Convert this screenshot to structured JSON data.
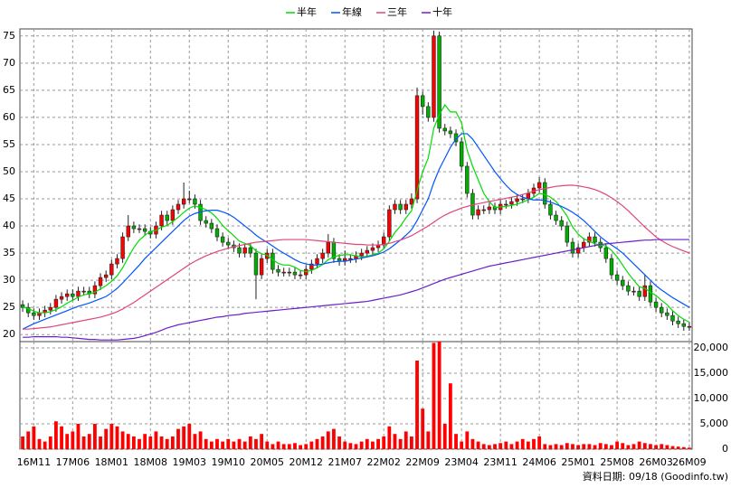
{
  "chart_data": {
    "type": "candlestick",
    "categories": [
      null,
      null,
      "16M11",
      null,
      null,
      null,
      null,
      null,
      null,
      "17M06",
      null,
      null,
      null,
      null,
      null,
      null,
      "18M01",
      null,
      null,
      null,
      null,
      null,
      null,
      "18M08",
      null,
      null,
      null,
      null,
      null,
      null,
      "19M03",
      null,
      null,
      null,
      null,
      null,
      null,
      "19M10",
      null,
      null,
      null,
      null,
      null,
      null,
      "20M05",
      null,
      null,
      null,
      null,
      null,
      null,
      "20M12",
      null,
      null,
      null,
      null,
      null,
      null,
      "21M07",
      null,
      null,
      null,
      null,
      null,
      null,
      "22M02",
      null,
      null,
      null,
      null,
      null,
      null,
      "22M09",
      null,
      null,
      null,
      null,
      null,
      null,
      "23M04",
      null,
      null,
      null,
      null,
      null,
      null,
      "23M11",
      null,
      null,
      null,
      null,
      null,
      null,
      "24M06",
      null,
      null,
      null,
      null,
      null,
      null,
      "25M01",
      null,
      null,
      null,
      null,
      null,
      null,
      "25M08",
      null,
      null,
      null,
      null,
      null,
      null,
      "26M03",
      null,
      null,
      null,
      null,
      null,
      "26M09"
    ],
    "open": [
      25.5,
      25,
      24,
      23.5,
      24,
      24.5,
      25,
      26.5,
      27,
      27.5,
      27,
      28,
      28,
      27.5,
      29,
      30.5,
      31,
      33,
      34,
      38,
      40,
      39.5,
      39.5,
      39,
      38.5,
      40,
      42,
      41,
      43,
      44,
      45,
      45,
      44,
      41,
      40.5,
      39.5,
      38,
      37,
      36.5,
      36,
      35,
      36,
      35,
      31,
      34,
      35,
      32,
      31.5,
      31.5,
      31.5,
      31,
      31,
      32,
      33,
      34,
      35,
      37,
      34,
      33.5,
      34,
      34,
      34.5,
      35,
      35.5,
      36,
      36.5,
      38,
      43,
      44,
      43,
      44,
      45,
      64,
      62,
      60,
      75,
      58,
      57.5,
      57,
      55.5,
      51,
      46,
      42,
      43,
      43,
      43.5,
      43,
      44,
      44,
      44.5,
      45,
      45,
      46,
      47,
      48,
      44,
      42,
      41,
      40,
      37,
      35,
      36,
      37,
      38,
      37,
      36,
      34,
      31,
      30,
      29,
      28,
      28,
      27,
      29,
      26,
      25,
      24,
      23.5,
      22.5,
      22,
      21.5
    ],
    "high": [
      26.3,
      25.8,
      24.8,
      24.8,
      25.3,
      25.8,
      27.3,
      27.8,
      28.3,
      28.3,
      28.8,
      28.8,
      28.8,
      29.8,
      31.3,
      31.8,
      33.8,
      34.8,
      38.8,
      42,
      40.8,
      40.3,
      40.3,
      39.8,
      40.8,
      42.8,
      42.8,
      43.8,
      44.8,
      48,
      46.5,
      45.8,
      44.8,
      41.8,
      41.3,
      40.3,
      38.8,
      37.8,
      37.3,
      36.8,
      36.8,
      36.8,
      35.8,
      34.8,
      35.8,
      35.8,
      32.8,
      32.3,
      32.3,
      32.3,
      31.8,
      32.8,
      33.8,
      34.8,
      35.8,
      38.5,
      37.8,
      34.8,
      35.5,
      34.8,
      35.3,
      35.8,
      36.3,
      36.8,
      37.3,
      38.8,
      43.8,
      44.8,
      44.8,
      44.8,
      46,
      65.5,
      64.8,
      62.8,
      76,
      75.8,
      58.8,
      58.3,
      57.8,
      56.3,
      51.8,
      46.8,
      43.8,
      43.8,
      44.3,
      44.3,
      44.8,
      44.8,
      45.3,
      45.8,
      45.8,
      46.8,
      47.8,
      49,
      48.8,
      44.8,
      42.8,
      41.8,
      40.8,
      37.8,
      36.8,
      37.8,
      38.8,
      38.8,
      37.8,
      36.8,
      34.8,
      31.8,
      30.8,
      29.8,
      28.8,
      28.8,
      31,
      29.8,
      26.8,
      25.8,
      24.8,
      24.3,
      23.3,
      22.8,
      22.3
    ],
    "low": [
      24.2,
      23.2,
      22.7,
      22.7,
      23.2,
      23.7,
      24.2,
      25.7,
      26.2,
      26.2,
      26.2,
      27.2,
      26.7,
      26.7,
      28.2,
      29.7,
      30.2,
      32.2,
      33.2,
      37.2,
      38.7,
      38.7,
      38.2,
      37.7,
      37.7,
      39.2,
      40.2,
      40.2,
      42.2,
      43.2,
      44.2,
      43.2,
      40.2,
      39.7,
      38.7,
      37.2,
      36.2,
      35.7,
      35.2,
      34.2,
      34.2,
      34.2,
      26.5,
      30.2,
      33.2,
      31.2,
      30.7,
      30.7,
      30.7,
      30.2,
      30.2,
      30.2,
      31.2,
      32.2,
      33.2,
      34.2,
      33.2,
      32.7,
      32.7,
      33.2,
      33.2,
      33.7,
      34.2,
      34.7,
      35.2,
      35.7,
      37.2,
      42.2,
      42.2,
      42.2,
      43.2,
      44.2,
      60.5,
      59.2,
      59.2,
      57.2,
      56.7,
      56.2,
      54.7,
      50.2,
      45.2,
      41.2,
      41.2,
      42.2,
      42.2,
      42.2,
      42.2,
      43.2,
      43.2,
      43.7,
      44.2,
      44.2,
      45.2,
      46.2,
      43.2,
      41.2,
      40.2,
      39.2,
      36.2,
      34.2,
      34.2,
      35.2,
      36.2,
      36.2,
      35.2,
      33.2,
      30.2,
      29.2,
      28.2,
      27.2,
      27.2,
      26.2,
      26.2,
      25.2,
      24.2,
      23.2,
      22.7,
      21.7,
      21.2,
      20.7,
      20.7
    ],
    "close": [
      25,
      24,
      23.5,
      24,
      24.5,
      25,
      26.5,
      27,
      27.5,
      27,
      28,
      28,
      27.5,
      29,
      30.5,
      31,
      33,
      34,
      38,
      40,
      39.5,
      39.5,
      39,
      38.5,
      40,
      42,
      41,
      43,
      44,
      45,
      45,
      44,
      41,
      40.5,
      39.5,
      38,
      37,
      36.5,
      36,
      35,
      36,
      35,
      31,
      34,
      35,
      32,
      31.5,
      31.5,
      31.5,
      31,
      31,
      32,
      33,
      34,
      35,
      37,
      34,
      33.5,
      34,
      34,
      34.5,
      35,
      35.5,
      36,
      36.5,
      38,
      43,
      44,
      43,
      44,
      45,
      64,
      62,
      60,
      75,
      58,
      57.5,
      57,
      55.5,
      51,
      46,
      42,
      43,
      43,
      43.5,
      43,
      44,
      44,
      44.5,
      45,
      45,
      46,
      47,
      48,
      44,
      42,
      41,
      40,
      37,
      35,
      36,
      37,
      38,
      37,
      36,
      34,
      31,
      30,
      29,
      28,
      28,
      27,
      29,
      26,
      25,
      24,
      23.5,
      22.5,
      22,
      21.5,
      21.5
    ],
    "up_color": "#ff0000",
    "down_color": "#00b000",
    "series": [
      {
        "name": "半年",
        "color": "#00dd00",
        "values": [
          25,
          24.8,
          24.3,
          24,
          24,
          24.2,
          24.6,
          25.1,
          25.8,
          26.3,
          26.9,
          27.3,
          27.5,
          27.8,
          28.4,
          29,
          29.8,
          30.8,
          32.3,
          34.2,
          36,
          37.4,
          38.3,
          39,
          39.2,
          39.8,
          40.1,
          40.8,
          41.6,
          42.5,
          43.3,
          43.7,
          43.4,
          43,
          42.4,
          41.4,
          40.1,
          39.1,
          38.2,
          37.2,
          36.8,
          36.4,
          35.4,
          34.9,
          34.6,
          33.8,
          33.1,
          32.8,
          32.8,
          32.4,
          31.8,
          31.6,
          31.8,
          32.3,
          32.9,
          33.8,
          34.3,
          34.6,
          34.7,
          34.7,
          34.5,
          34.3,
          34.4,
          34.7,
          35,
          35.8,
          37.2,
          38.8,
          40,
          41.5,
          42.8,
          46.5,
          50,
          52.5,
          58,
          60.5,
          62.3,
          61,
          61,
          59,
          54,
          51,
          48.5,
          46,
          44.5,
          43.4,
          43.5,
          43.6,
          43.8,
          44,
          44.4,
          44.8,
          45.3,
          46,
          45.8,
          45.3,
          44.5,
          43.3,
          41.8,
          39.8,
          38.5,
          37.6,
          37.2,
          36.7,
          36.5,
          36.3,
          35.5,
          34.3,
          32.8,
          31.3,
          30,
          28.8,
          28.5,
          27.8,
          27.2,
          26.3,
          25.5,
          24.4,
          23.5,
          22.8,
          22.3
        ]
      },
      {
        "name": "年線",
        "color": "#0055ff",
        "values": [
          21,
          21.5,
          22,
          22.4,
          22.8,
          23.2,
          23.6,
          24,
          24.4,
          24.8,
          25.2,
          25.5,
          25.8,
          26.2,
          26.6,
          27,
          27.7,
          28.5,
          29.5,
          30.6,
          31.7,
          32.8,
          34,
          35,
          36,
          37,
          38,
          39,
          40,
          41,
          41.8,
          42.3,
          42.6,
          42.8,
          42.9,
          42.9,
          42.6,
          42.2,
          41.6,
          40.8,
          40,
          39.2,
          38.3,
          37.6,
          37,
          36.3,
          35.6,
          35,
          34.4,
          33.8,
          33.3,
          33,
          32.8,
          32.8,
          33,
          33.2,
          33.4,
          33.5,
          33.5,
          33.7,
          33.9,
          34.1,
          34.3,
          34.5,
          34.8,
          35.2,
          35.8,
          36.6,
          37.4,
          38.3,
          39.3,
          41,
          43,
          45,
          48,
          50.5,
          52.5,
          54.5,
          56,
          57,
          57,
          56,
          54.5,
          53,
          51.5,
          50,
          48.7,
          47.5,
          46.5,
          45.8,
          45.3,
          45,
          44.8,
          44.8,
          44.7,
          44.4,
          44,
          43.6,
          43.1,
          42.5,
          41.8,
          41,
          40,
          39,
          38,
          37.2,
          36.5,
          35.8,
          35,
          34,
          33,
          32,
          31,
          30,
          29,
          28.2,
          27.5,
          26.8,
          26.2,
          25.6,
          25
        ]
      },
      {
        "name": "三年",
        "color": "#e0457b",
        "values": [
          21,
          21,
          21.1,
          21.2,
          21.3,
          21.4,
          21.6,
          21.8,
          22,
          22.2,
          22.4,
          22.6,
          22.8,
          23,
          23.2,
          23.5,
          23.8,
          24.2,
          24.7,
          25.3,
          25.9,
          26.6,
          27.3,
          28,
          28.7,
          29.4,
          30.1,
          30.8,
          31.5,
          32.2,
          32.9,
          33.5,
          34,
          34.5,
          34.9,
          35.3,
          35.6,
          35.9,
          36.2,
          36.4,
          36.6,
          36.8,
          37,
          37.1,
          37.2,
          37.3,
          37.4,
          37.5,
          37.5,
          37.5,
          37.5,
          37.5,
          37.4,
          37.3,
          37.2,
          37.1,
          37,
          36.9,
          36.8,
          36.7,
          36.6,
          36.6,
          36.5,
          36.5,
          36.5,
          36.6,
          36.8,
          37.1,
          37.4,
          37.8,
          38.2,
          38.8,
          39.4,
          40,
          40.7,
          41.4,
          42,
          42.5,
          42.9,
          43.3,
          43.6,
          43.9,
          44.1,
          44.3,
          44.5,
          44.7,
          44.9,
          45.1,
          45.3,
          45.5,
          45.8,
          46.1,
          46.4,
          46.7,
          46.9,
          47.1,
          47.3,
          47.4,
          47.5,
          47.5,
          47.4,
          47.2,
          47,
          46.7,
          46.3,
          45.8,
          45.2,
          44.5,
          43.7,
          42.8,
          41.8,
          40.8,
          39.8,
          38.9,
          38,
          37.3,
          36.7,
          36.2,
          35.8,
          35.4,
          35
        ]
      },
      {
        "name": "十年",
        "color": "#6a1fc8",
        "values": [
          19.5,
          19.5,
          19.6,
          19.6,
          19.6,
          19.6,
          19.6,
          19.5,
          19.5,
          19.4,
          19.3,
          19.2,
          19.1,
          19.1,
          19,
          19,
          19,
          19,
          19.1,
          19.2,
          19.3,
          19.5,
          19.8,
          20.1,
          20.4,
          20.8,
          21.2,
          21.5,
          21.8,
          22,
          22.2,
          22.4,
          22.6,
          22.8,
          23,
          23.2,
          23.3,
          23.5,
          23.6,
          23.7,
          23.9,
          24,
          24.1,
          24.2,
          24.3,
          24.4,
          24.5,
          24.6,
          24.7,
          24.8,
          24.9,
          25,
          25.1,
          25.2,
          25.3,
          25.4,
          25.5,
          25.6,
          25.7,
          25.8,
          25.9,
          26,
          26.1,
          26.3,
          26.5,
          26.7,
          26.9,
          27.1,
          27.3,
          27.6,
          27.9,
          28.2,
          28.6,
          29,
          29.4,
          29.8,
          30.2,
          30.5,
          30.8,
          31.1,
          31.4,
          31.7,
          32,
          32.3,
          32.6,
          32.8,
          33,
          33.2,
          33.4,
          33.6,
          33.8,
          34,
          34.2,
          34.4,
          34.6,
          34.8,
          35,
          35.2,
          35.4,
          35.6,
          35.8,
          36,
          36.2,
          36.4,
          36.6,
          36.7,
          36.8,
          36.9,
          37,
          37.1,
          37.2,
          37.3,
          37.4,
          37.4,
          37.5,
          37.5,
          37.5,
          37.5,
          37.5,
          37.5,
          37.5
        ]
      }
    ],
    "ylim": [
      18.7,
      76.3
    ],
    "yticks": [
      20,
      25,
      30,
      35,
      40,
      45,
      50,
      55,
      60,
      65,
      70,
      75
    ],
    "grid": true,
    "volume": {
      "color": "#ff0000",
      "values": [
        2500,
        3500,
        4500,
        2000,
        1500,
        2500,
        5500,
        4500,
        3000,
        3500,
        5000,
        2500,
        3000,
        5000,
        2500,
        4000,
        5000,
        4500,
        3500,
        3000,
        2500,
        2000,
        3000,
        2500,
        3500,
        2500,
        2000,
        2500,
        4000,
        4500,
        5000,
        3000,
        3500,
        2000,
        1500,
        2000,
        1500,
        2000,
        1500,
        2000,
        1500,
        2500,
        2000,
        3000,
        1500,
        1000,
        1500,
        1000,
        1000,
        1200,
        800,
        1000,
        1500,
        2000,
        2500,
        3500,
        4000,
        2500,
        1500,
        1200,
        1000,
        1500,
        2000,
        1500,
        2000,
        2500,
        4500,
        3000,
        2000,
        3500,
        2500,
        17500,
        8000,
        3500,
        21000,
        21300,
        5000,
        13000,
        3000,
        1500,
        3500,
        2000,
        1500,
        1000,
        800,
        1000,
        1200,
        1500,
        1000,
        1500,
        2000,
        1500,
        2000,
        2500,
        1000,
        800,
        1000,
        800,
        1200,
        1000,
        800,
        1000,
        1000,
        800,
        1200,
        1000,
        800,
        1500,
        1200,
        800,
        1000,
        1500,
        1200,
        1000,
        800,
        1000,
        800,
        600,
        500,
        400,
        300
      ],
      "ylim": [
        0,
        21250
      ],
      "yticks": [
        0,
        {
          "value": 5000,
          "label": "5,000"
        },
        {
          "value": 10000,
          "label": "10,000"
        },
        {
          "value": 15000,
          "label": "15,000"
        },
        {
          "value": 20000,
          "label": "20,000"
        }
      ]
    },
    "source": "資料日期: 09/18 (Goodinfo.tw)"
  }
}
